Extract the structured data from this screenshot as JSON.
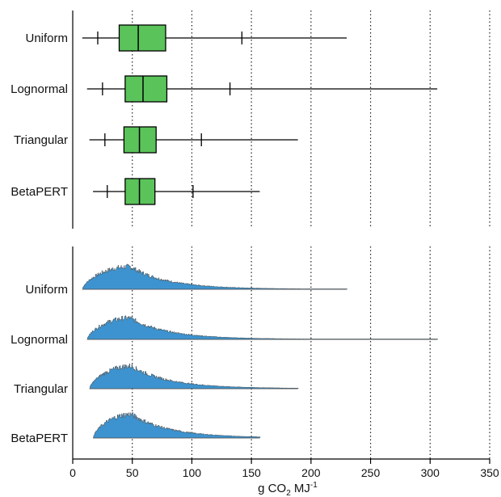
{
  "chart_data": {
    "type": "boxplot+histogram",
    "xlim": [
      0,
      350
    ],
    "x_ticks": [
      0,
      50,
      100,
      150,
      200,
      250,
      300,
      350
    ],
    "x_tick_labels": [
      "0",
      "50",
      "100",
      "150",
      "200",
      "250",
      "300",
      "350"
    ],
    "xlabel": "g CO₂ MJ⁻¹",
    "xlabel_parts": {
      "base": "g CO",
      "sub": "2",
      "mid": " MJ",
      "sup": "-1"
    },
    "grid": "vertical dotted",
    "colors": {
      "box": "#5ac35a",
      "hist": "#3d93cf",
      "line": "#000000"
    },
    "categories": [
      "Uniform",
      "Lognormal",
      "Triangular",
      "BetaPERT"
    ],
    "boxplot": [
      {
        "category": "Uniform",
        "min": 8,
        "p05": 21,
        "q1": 39,
        "median": 55,
        "q3": 78,
        "p95": 142,
        "max": 230
      },
      {
        "category": "Lognormal",
        "min": 12,
        "p05": 25,
        "q1": 44,
        "median": 59,
        "q3": 79,
        "p95": 132,
        "max": 306
      },
      {
        "category": "Triangular",
        "min": 14,
        "p05": 27,
        "q1": 43,
        "median": 56,
        "q3": 70,
        "p95": 108,
        "max": 189
      },
      {
        "category": "BetaPERT",
        "min": 17,
        "p05": 29,
        "q1": 44,
        "median": 56,
        "q3": 69,
        "p95": 101,
        "max": 157
      }
    ],
    "histograms": [
      {
        "category": "Uniform",
        "min": 8,
        "mode": 48,
        "max": 230,
        "scale": 1.0
      },
      {
        "category": "Lognormal",
        "min": 12,
        "mode": 48,
        "max": 306,
        "scale": 0.95
      },
      {
        "category": "Triangular",
        "min": 14,
        "mode": 49,
        "max": 189,
        "scale": 1.0
      },
      {
        "category": "BetaPERT",
        "min": 17,
        "mode": 49,
        "max": 157,
        "scale": 1.05
      }
    ]
  }
}
